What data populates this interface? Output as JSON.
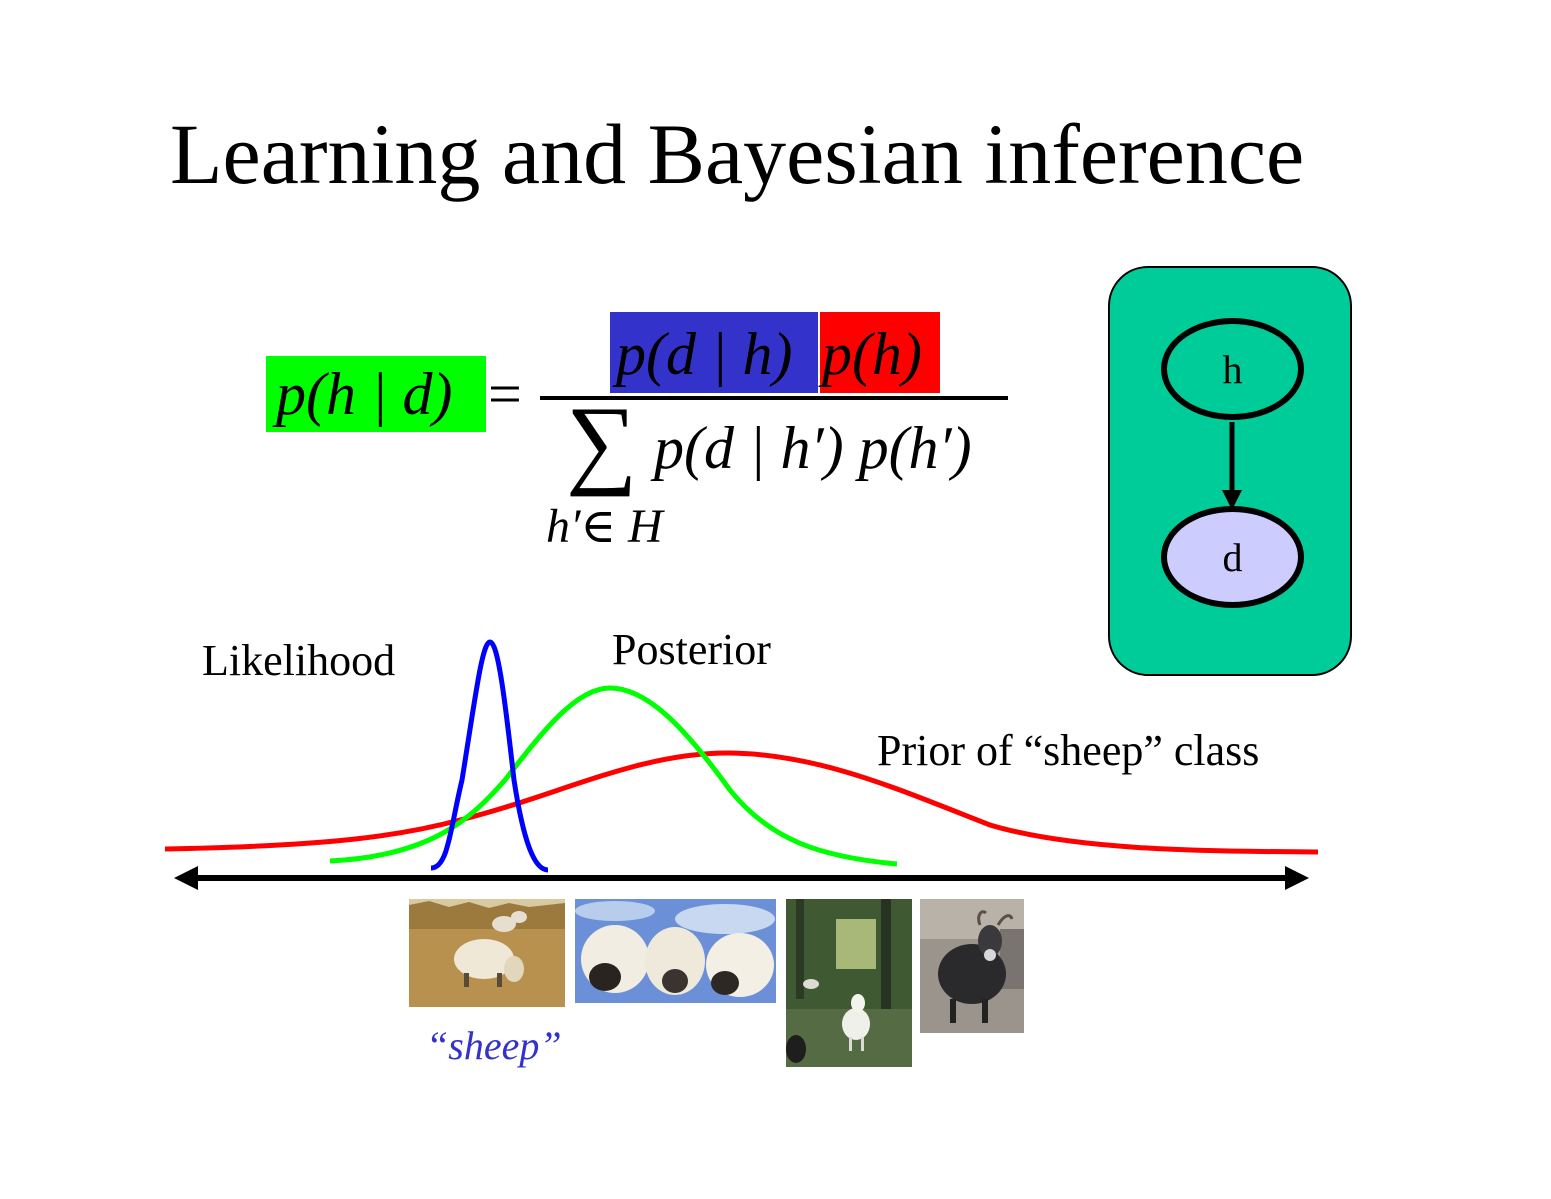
{
  "title": "Learning and Bayesian inference",
  "formula": {
    "lhs": "p(h | d)",
    "equals": "=",
    "numerator_likelihood": "p(d | h)",
    "numerator_prior": "p(h)",
    "denominator_sum": "∑",
    "denominator_term": "p(d | h′) p(h′)",
    "sum_subscript": "h′∈ H"
  },
  "model": {
    "hypothesis_node": "h",
    "data_node": "d"
  },
  "curves": {
    "likelihood_label": "Likelihood",
    "posterior_label": "Posterior",
    "prior_label": "Prior of “sheep” class",
    "data_label": "“sheep”"
  },
  "photos": [
    {
      "name": "sheep grazing in field"
    },
    {
      "name": "three sheep faces against sky"
    },
    {
      "name": "white goat in forest"
    },
    {
      "name": "black goat"
    }
  ],
  "colors": {
    "likelihood": "#0000ff",
    "posterior": "#00ff00",
    "prior": "#ff0000",
    "lhs_highlight": "#00ff00",
    "numerator_likelihood_highlight": "#3333cc",
    "numerator_prior_highlight": "#ff0000",
    "panel": "#00cc99",
    "data_node": "#ccccff"
  }
}
